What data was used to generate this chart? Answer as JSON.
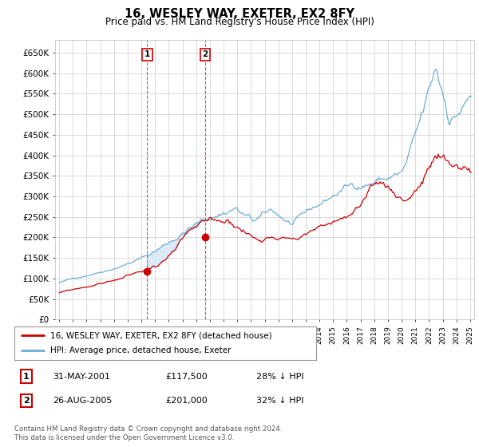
{
  "title": "16, WESLEY WAY, EXETER, EX2 8FY",
  "subtitle": "Price paid vs. HM Land Registry's House Price Index (HPI)",
  "bg_color": "#ffffff",
  "grid_color": "#cccccc",
  "hpi_color": "#6baed6",
  "property_color": "#cc0000",
  "shade_between_purchases_color": "#daeaf7",
  "purchase1_year": 2001.42,
  "purchase1_price": 117500,
  "purchase1_date": "31-MAY-2001",
  "purchase2_year": 2005.65,
  "purchase2_price": 201000,
  "purchase2_date": "26-AUG-2005",
  "legend_line1": "16, WESLEY WAY, EXETER, EX2 8FY (detached house)",
  "legend_line2": "HPI: Average price, detached house, Exeter",
  "annotation1_label": "28% ↓ HPI",
  "annotation2_label": "32% ↓ HPI",
  "footer": "Contains HM Land Registry data © Crown copyright and database right 2024.\nThis data is licensed under the Open Government Licence v3.0.",
  "ylim": [
    0,
    680000
  ],
  "xlim_left": 1994.7,
  "xlim_right": 2025.3,
  "yticks": [
    0,
    50000,
    100000,
    150000,
    200000,
    250000,
    300000,
    350000,
    400000,
    450000,
    500000,
    550000,
    600000,
    650000
  ],
  "yticklabels": [
    "£0",
    "£50K",
    "£100K",
    "£150K",
    "£200K",
    "£250K",
    "£300K",
    "£350K",
    "£400K",
    "£450K",
    "£500K",
    "£550K",
    "£600K",
    "£650K"
  ]
}
